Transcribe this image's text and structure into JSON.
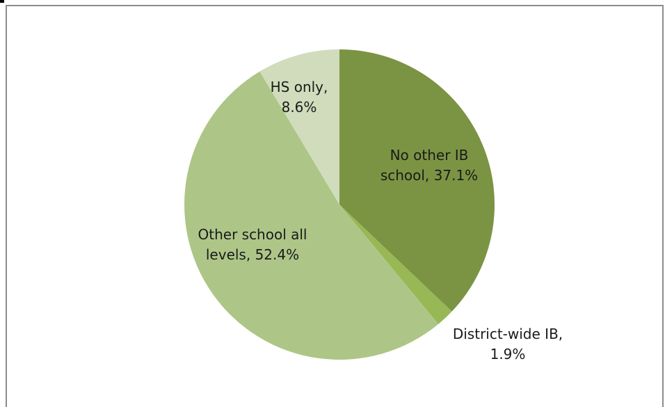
{
  "chart_data": {
    "type": "pie",
    "title": "",
    "categories": [
      "No other IB school",
      "District-wide IB",
      "Other school all levels",
      "HS only"
    ],
    "values": [
      37.1,
      1.9,
      52.4,
      8.6
    ],
    "unit": "%",
    "colors": [
      "#7b9443",
      "#97b855",
      "#adc688",
      "#d0dcbb"
    ],
    "labels": [
      [
        "No other IB",
        "school, 37.1%"
      ],
      [
        "District-wide IB,",
        "1.9%"
      ],
      [
        "Other school all",
        "levels, 52.4%"
      ],
      [
        "HS only,",
        "8.6%"
      ]
    ],
    "start_angle": "12 o'clock",
    "direction": "clockwise",
    "legend": "none"
  }
}
